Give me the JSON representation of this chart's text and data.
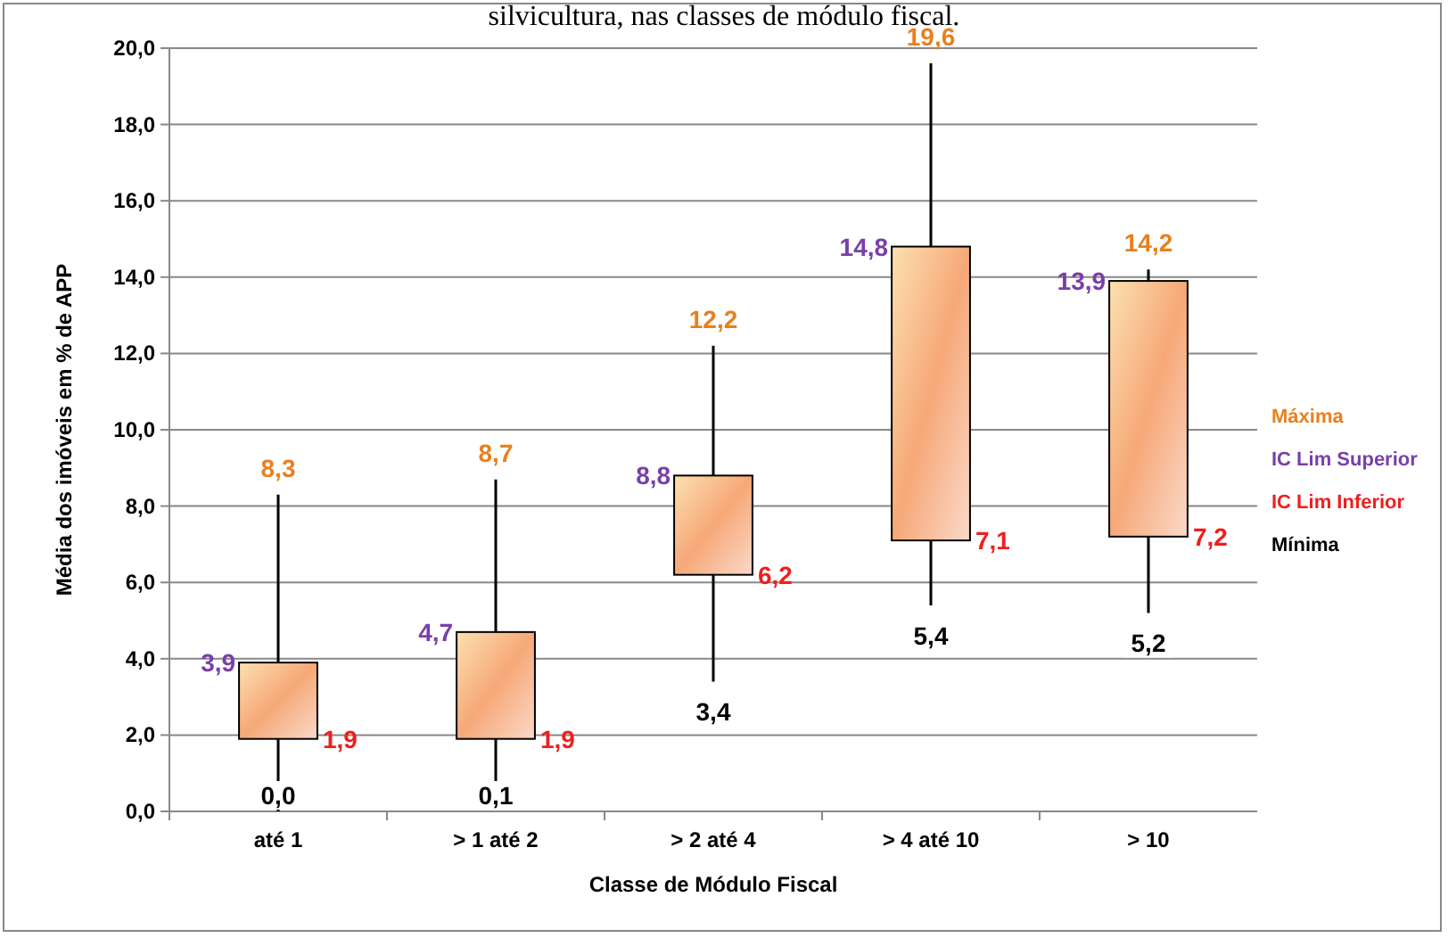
{
  "chart_data": {
    "type": "candlestick",
    "title": "silvicultura, nas classes de módulo fiscal.",
    "xlabel": "Classe de Módulo Fiscal",
    "ylabel": "Média dos imóveis em % de APP",
    "categories": [
      "até 1",
      "> 1 até 2",
      "> 2 até 4",
      "> 4 até 10",
      "> 10"
    ],
    "ohlc": [
      [
        1.9,
        8.3,
        0.0,
        3.9
      ],
      [
        1.9,
        8.7,
        0.1,
        4.7
      ],
      [
        6.2,
        12.2,
        3.4,
        8.8
      ],
      [
        7.1,
        19.6,
        5.4,
        14.8
      ],
      [
        7.2,
        14.2,
        5.2,
        13.9
      ]
    ],
    "ylim": [
      0,
      20
    ],
    "yticks": [
      {
        "value": 0,
        "label": "0,0"
      },
      {
        "value": 2,
        "label": "2,0"
      },
      {
        "value": 4,
        "label": "4,0"
      },
      {
        "value": 6,
        "label": "6,0"
      },
      {
        "value": 8,
        "label": "8,0"
      },
      {
        "value": 10,
        "label": "10,0"
      },
      {
        "value": 12,
        "label": "12,0"
      },
      {
        "value": 14,
        "label": "14,0"
      },
      {
        "value": 16,
        "label": "16,0"
      },
      {
        "value": 18,
        "label": "18,0"
      },
      {
        "value": 20,
        "label": "20,0"
      }
    ],
    "grid": "y",
    "annotations": [
      {
        "text": "8,3",
        "x": "até 1",
        "y": 8.3
      },
      {
        "text": "8,7",
        "x": "> 1 até 2",
        "y": 8.7
      },
      {
        "text": "12,2",
        "x": "> 2 até 4",
        "y": 12.2
      },
      {
        "text": "19,6",
        "x": "> 4 até 10",
        "y": 19.6
      },
      {
        "text": "14,2",
        "x": "> 10",
        "y": 14.2
      },
      {
        "text": "3,9",
        "x": "até 1",
        "y": 3.9
      },
      {
        "text": "4,7",
        "x": "> 1 até 2",
        "y": 4.7
      },
      {
        "text": "8,8",
        "x": "> 2 até 4",
        "y": 8.8
      },
      {
        "text": "14,8",
        "x": "> 4 até 10",
        "y": 14.8
      },
      {
        "text": "13,9",
        "x": "> 10",
        "y": 13.9
      },
      {
        "text": "1,9",
        "x": "até 1",
        "y": 1.9
      },
      {
        "text": "1,9",
        "x": "> 1 até 2",
        "y": 1.9
      },
      {
        "text": "6,2",
        "x": "> 2 até 4",
        "y": 6.2
      },
      {
        "text": "7,1",
        "x": "> 4 até 10",
        "y": 7.1
      },
      {
        "text": "7,2",
        "x": "> 10",
        "y": 7.2
      },
      {
        "text": "0,0",
        "x": "até 1",
        "y": 0.0
      },
      {
        "text": "0,1",
        "x": "> 1 até 2",
        "y": 0.1
      },
      {
        "text": "3,4",
        "x": "> 2 até 4",
        "y": 3.4
      },
      {
        "text": "5,4",
        "x": "> 4 até 10",
        "y": 5.4
      },
      {
        "text": "5,2",
        "x": "> 10",
        "y": 5.2
      },
      "Máxima",
      "IC Lim Superior",
      "IC Lim Inferior",
      "Mínima"
    ]
  }
}
